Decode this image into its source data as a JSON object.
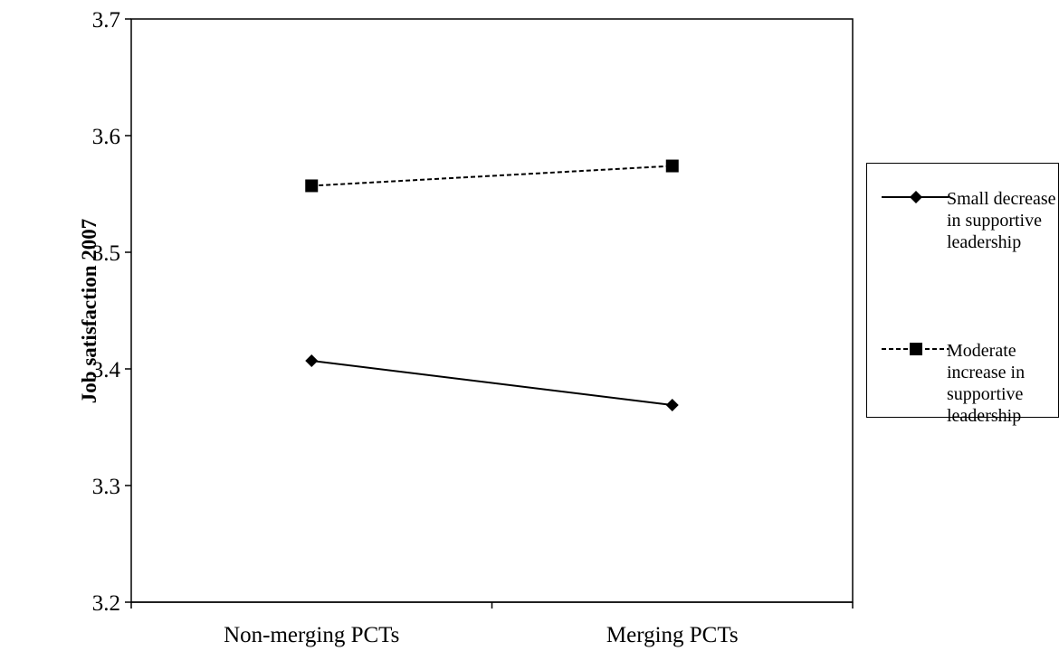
{
  "chart_data": {
    "type": "line",
    "title": "",
    "xlabel": "",
    "ylabel": "Job satisfaction 2007",
    "categories": [
      "Non-merging PCTs",
      "Merging PCTs"
    ],
    "ylim": [
      3.2,
      3.7
    ],
    "yticks": [
      "3.2",
      "3.3",
      "3.4",
      "3.5",
      "3.6",
      "3.7"
    ],
    "grid": false,
    "legend_position": "right",
    "series": [
      {
        "name": "Small decrease in supportive leadership",
        "values": [
          3.407,
          3.369
        ],
        "marker": "diamond",
        "line_style": "solid",
        "color": "#000000"
      },
      {
        "name": "Moderate increase in supportive leadership",
        "values": [
          3.557,
          3.574
        ],
        "marker": "square",
        "line_style": "dashed",
        "color": "#000000"
      }
    ]
  }
}
